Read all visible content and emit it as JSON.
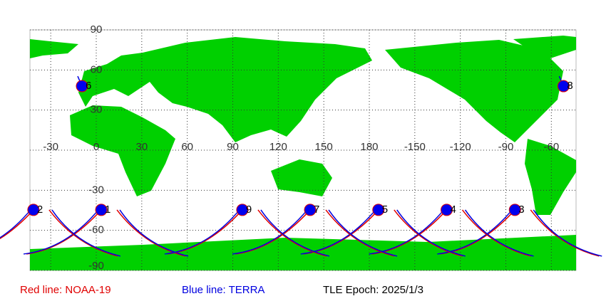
{
  "map": {
    "lon_ticks": [
      -30,
      0,
      30,
      60,
      90,
      120,
      150,
      180,
      -150,
      -120,
      -90,
      -60
    ],
    "lat_ticks": [
      90,
      60,
      30,
      -30,
      -60,
      -90
    ],
    "markers": [
      {
        "label": "1",
        "lon": 3.3,
        "lat": -44.7
      },
      {
        "label": "2",
        "lon": -41.4,
        "lat": -44.7
      },
      {
        "label": "3",
        "lon": -84,
        "lat": -44.7
      },
      {
        "label": "4",
        "lon": -129,
        "lat": -44.7
      },
      {
        "label": "5",
        "lon": -174,
        "lat": -44.7
      },
      {
        "label": "6",
        "lon": -9.4,
        "lat": 47.9
      },
      {
        "label": "7",
        "lon": 141,
        "lat": -44.7
      },
      {
        "label": "8",
        "lon": -52,
        "lat": 47.9
      },
      {
        "label": "9",
        "lon": 96.3,
        "lat": -44.7
      }
    ],
    "legend": {
      "red": "Red line: NOAA-19",
      "blue": "Blue line: TERRA",
      "epoch": "TLE Epoch: 2025/1/3"
    }
  }
}
